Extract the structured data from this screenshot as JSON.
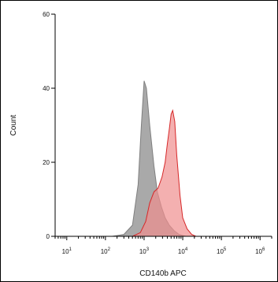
{
  "chart_data": {
    "type": "area",
    "xlabel": "CD140b APC",
    "ylabel": "Count",
    "x_scale": "log",
    "xlim": [
      5,
      2000000
    ],
    "ylim": [
      0,
      60
    ],
    "y_ticks": [
      0,
      20,
      40,
      60
    ],
    "x_ticks": [
      {
        "value": 10,
        "base": "10",
        "exp": "1"
      },
      {
        "value": 100,
        "base": "10",
        "exp": "2"
      },
      {
        "value": 1000,
        "base": "10",
        "exp": "3"
      },
      {
        "value": 10000,
        "base": "10",
        "exp": "4"
      },
      {
        "value": 100000,
        "base": "10",
        "exp": "5"
      },
      {
        "value": 1000000,
        "base": "10",
        "exp": "6"
      }
    ],
    "grid": false,
    "series": [
      {
        "color": "#7f7f7f",
        "fill": "#9a9a9a",
        "points": [
          [
            150,
            0
          ],
          [
            300,
            0.5
          ],
          [
            500,
            3
          ],
          [
            700,
            14
          ],
          [
            850,
            30
          ],
          [
            1000,
            42
          ],
          [
            1150,
            40
          ],
          [
            1400,
            30
          ],
          [
            1800,
            19
          ],
          [
            2200,
            12
          ],
          [
            2800,
            8
          ],
          [
            3500,
            5
          ],
          [
            4500,
            3
          ],
          [
            6000,
            1.5
          ],
          [
            8000,
            0.5
          ],
          [
            12000,
            0
          ]
        ]
      },
      {
        "color": "#d62728",
        "fill": "#ef8f8f",
        "points": [
          [
            500,
            0
          ],
          [
            800,
            1
          ],
          [
            1100,
            4
          ],
          [
            1400,
            9
          ],
          [
            1800,
            12
          ],
          [
            2300,
            13
          ],
          [
            2900,
            16
          ],
          [
            3500,
            20
          ],
          [
            4000,
            25
          ],
          [
            4500,
            29
          ],
          [
            5000,
            33
          ],
          [
            5500,
            34
          ],
          [
            6200,
            31
          ],
          [
            7000,
            22
          ],
          [
            8500,
            11
          ],
          [
            10000,
            5
          ],
          [
            13000,
            2
          ],
          [
            17000,
            0.5
          ],
          [
            22000,
            0
          ]
        ]
      }
    ]
  }
}
